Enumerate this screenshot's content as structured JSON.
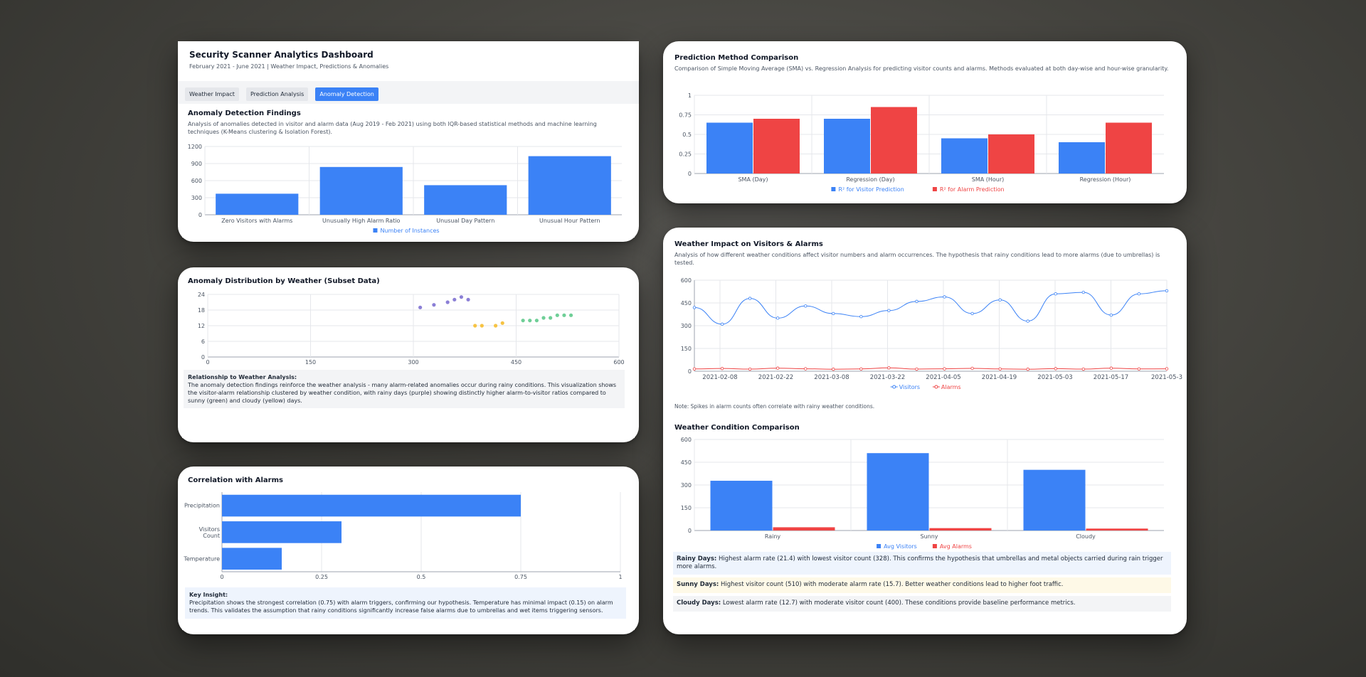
{
  "dashboard": {
    "title": "Security Scanner Analytics Dashboard",
    "subtitle": "February 2021 - June 2021 | Weather Impact, Predictions & Anomalies",
    "tabs": [
      {
        "label": "Weather Impact",
        "active": false
      },
      {
        "label": "Prediction Analysis",
        "active": false
      },
      {
        "label": "Anomaly Detection",
        "active": true
      }
    ]
  },
  "anomaly": {
    "title": "Anomaly Detection Findings",
    "description": "Analysis of anomalies detected in visitor and alarm data (Aug 2019 - Feb 2021) using both IQR-based statistical methods and machine learning techniques (K-Means clustering & Isolation Forest)."
  },
  "distribution": {
    "title": "Anomaly Distribution by Weather (Subset Data)",
    "note_title": "Relationship to Weather Analysis:",
    "note_text": "The anomaly detection findings reinforce the weather analysis - many alarm-related anomalies occur during rainy conditions. This visualization shows the visitor-alarm relationship clustered by weather condition, with rainy days (purple) showing distinctly higher alarm-to-visitor ratios compared to sunny (green) and cloudy (yellow) days."
  },
  "correlation": {
    "title": "Correlation with Alarms",
    "insight_title": "Key Insight:",
    "insight_text": "Precipitation shows the strongest correlation (0.75) with alarm triggers, confirming our hypothesis. Temperature has minimal impact (0.15) on alarm trends. This validates the assumption that rainy conditions significantly increase false alarms due to umbrellas and wet items triggering sensors."
  },
  "prediction": {
    "title": "Prediction Method Comparison",
    "description": "Comparison of Simple Moving Average (SMA) vs. Regression Analysis for predicting visitor counts and alarms. Methods evaluated at both day-wise and hour-wise granularity."
  },
  "weather_impact": {
    "title": "Weather Impact on Visitors & Alarms",
    "description": "Analysis of how different weather conditions affect visitor numbers and alarm occurrences. The hypothesis that rainy conditions lead to more alarms (due to umbrellas) is tested.",
    "note": "Note: Spikes in alarm counts often correlate with rainy weather conditions."
  },
  "weather_comparison": {
    "title": "Weather Condition Comparison",
    "rainy_label": "Rainy Days:",
    "rainy_text": "Highest alarm rate (21.4) with lowest visitor count (328). This confirms the hypothesis that umbrellas and metal objects carried during rain trigger more alarms.",
    "sunny_label": "Sunny Days:",
    "sunny_text": "Highest visitor count (510) with moderate alarm rate (15.7). Better weather conditions lead to higher foot traffic.",
    "cloudy_label": "Cloudy Days:",
    "cloudy_text": "Lowest alarm rate (12.7) with moderate visitor count (400). These conditions provide baseline performance metrics."
  },
  "colors": {
    "blue": "#3b82f6",
    "red": "#ef4444",
    "purple": "#8b7fd6",
    "green": "#6fcf97",
    "yellow": "#f6c344",
    "grid": "#e5e7eb",
    "axis": "#9ca3af",
    "text": "#4b5563"
  },
  "chart_data": [
    {
      "id": "anomaly_bar",
      "type": "bar",
      "categories": [
        "Zero Visitors with Alarms",
        "Unusually High Alarm Ratio",
        "Unusual Day Pattern",
        "Unusual Hour Pattern"
      ],
      "series": [
        {
          "name": "Number of Instances",
          "values": [
            370,
            840,
            520,
            1030
          ]
        }
      ],
      "yticks": [
        "0",
        "300",
        "600",
        "900",
        "1200"
      ],
      "ylim": [
        0,
        1200
      ],
      "legend": "bottom"
    },
    {
      "id": "weather_scatter",
      "type": "scatter",
      "xticks": [
        "0",
        "150",
        "300",
        "450",
        "600"
      ],
      "yticks": [
        "0",
        "6",
        "12",
        "18",
        "24"
      ],
      "xlim": [
        0,
        600
      ],
      "ylim": [
        0,
        24
      ],
      "series": [
        {
          "name": "Rainy Days",
          "points": [
            [
              310,
              19
            ],
            [
              330,
              20
            ],
            [
              350,
              21
            ],
            [
              360,
              22
            ],
            [
              370,
              23
            ],
            [
              380,
              22
            ]
          ]
        },
        {
          "name": "Sunny Days",
          "points": [
            [
              460,
              14
            ],
            [
              470,
              14
            ],
            [
              480,
              14
            ],
            [
              490,
              15
            ],
            [
              500,
              15
            ],
            [
              510,
              16
            ],
            [
              520,
              16
            ],
            [
              530,
              16
            ]
          ]
        },
        {
          "name": "Cloudy Days",
          "points": [
            [
              390,
              12
            ],
            [
              400,
              12
            ],
            [
              420,
              12
            ],
            [
              430,
              13
            ]
          ]
        }
      ],
      "legend": "bottom"
    },
    {
      "id": "correlation_bar",
      "type": "bar",
      "orientation": "horizontal",
      "categories": [
        "Precipitation",
        "Visitors Count",
        "Temperature"
      ],
      "values": [
        0.75,
        0.3,
        0.15
      ],
      "xticks": [
        "0",
        "0.25",
        "0.5",
        "0.75",
        "1"
      ],
      "xlim": [
        0,
        1
      ]
    },
    {
      "id": "prediction_bar",
      "type": "bar",
      "categories": [
        "SMA (Day)",
        "Regression (Day)",
        "SMA (Hour)",
        "Regression (Hour)"
      ],
      "series": [
        {
          "name": "R² for Visitor Prediction",
          "values": [
            0.65,
            0.7,
            0.45,
            0.4
          ]
        },
        {
          "name": "R² for Alarm Prediction",
          "values": [
            0.7,
            0.85,
            0.5,
            0.65
          ]
        }
      ],
      "yticks": [
        "0",
        "0.25",
        "0.5",
        "0.75",
        "1"
      ],
      "ylim": [
        0,
        1
      ],
      "legend": "bottom"
    },
    {
      "id": "weather_line",
      "type": "line",
      "xticks": [
        "2021-02-08",
        "2021-02-22",
        "2021-03-08",
        "2021-03-22",
        "2021-04-05",
        "2021-04-19",
        "2021-05-03",
        "2021-05-17",
        "2021-05-3"
      ],
      "yticks": [
        "0",
        "150",
        "300",
        "450",
        "600"
      ],
      "ylim": [
        0,
        600
      ],
      "series": [
        {
          "name": "Visitors",
          "values": [
            420,
            310,
            480,
            350,
            430,
            380,
            360,
            400,
            460,
            490,
            380,
            470,
            330,
            510,
            520,
            370,
            510,
            530
          ]
        },
        {
          "name": "Alarms",
          "values": [
            15,
            18,
            14,
            20,
            16,
            13,
            15,
            22,
            14,
            16,
            19,
            15,
            13,
            17,
            14,
            20,
            15,
            16
          ]
        }
      ],
      "legend": "bottom"
    },
    {
      "id": "weather_compare_bar",
      "type": "bar",
      "categories": [
        "Rainy",
        "Sunny",
        "Cloudy"
      ],
      "series": [
        {
          "name": "Avg Visitors",
          "values": [
            328,
            510,
            400
          ]
        },
        {
          "name": "Avg Alarms",
          "values": [
            21.4,
            15.7,
            12.7
          ]
        }
      ],
      "yticks": [
        "0",
        "150",
        "300",
        "450",
        "600"
      ],
      "ylim": [
        0,
        600
      ],
      "legend": "bottom"
    }
  ]
}
